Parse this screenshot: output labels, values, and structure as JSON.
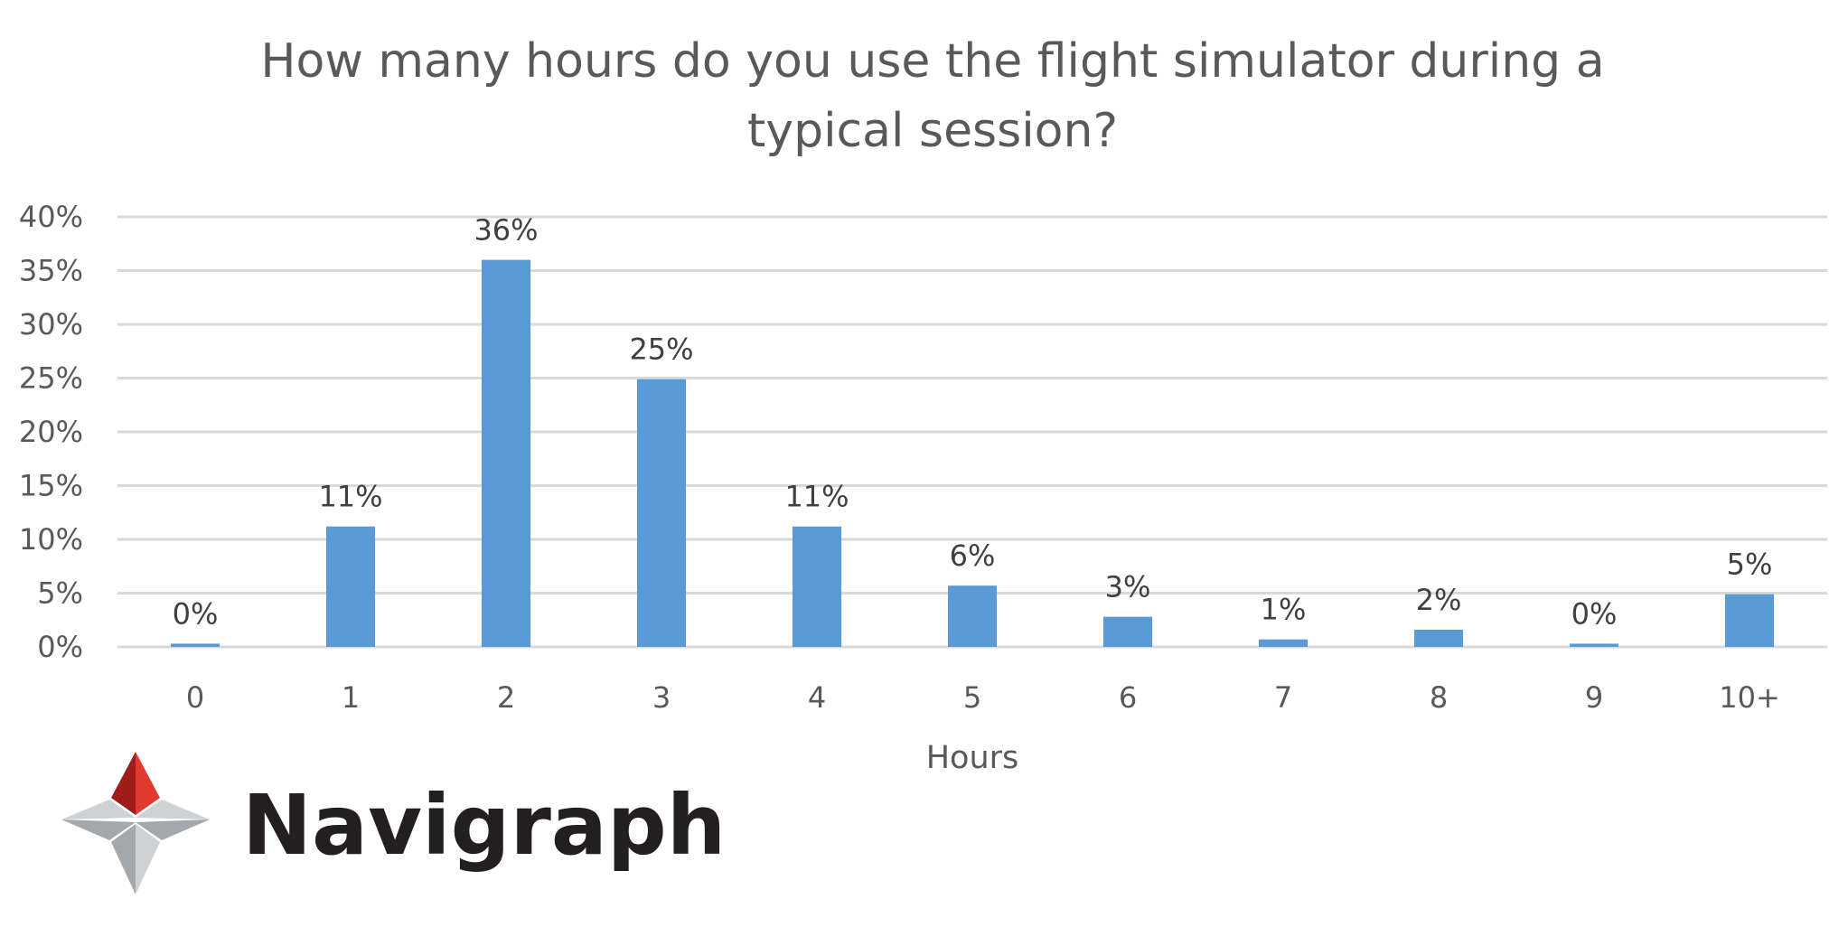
{
  "chart_data": {
    "type": "bar",
    "title": "How many hours do you use the flight simulator during a typical session?",
    "title_lines": [
      "How many hours do you use the flight simulator during a",
      "typical session?"
    ],
    "xlabel": "Hours",
    "ylabel": "",
    "categories": [
      "0",
      "1",
      "2",
      "3",
      "4",
      "5",
      "6",
      "7",
      "8",
      "9",
      "10+"
    ],
    "values": [
      0.3,
      11.2,
      36.0,
      24.9,
      11.2,
      5.7,
      2.8,
      0.7,
      1.6,
      0.3,
      4.9
    ],
    "data_labels": [
      "0%",
      "11%",
      "36%",
      "25%",
      "11%",
      "6%",
      "3%",
      "1%",
      "2%",
      "0%",
      "5%"
    ],
    "ylim": [
      0,
      40
    ],
    "yticks": [
      0,
      5,
      10,
      15,
      20,
      25,
      30,
      35,
      40
    ],
    "ytick_labels": [
      "0%",
      "5%",
      "10%",
      "15%",
      "20%",
      "25%",
      "30%",
      "35%",
      "40%"
    ],
    "grid": true,
    "legend": "none",
    "bar_color": "#5b9bd5",
    "grid_color": "#d9d9d9"
  },
  "logo": {
    "text": "Navigraph",
    "colors": {
      "red": "#e03a2f",
      "dark_red": "#9e1c1a",
      "gray": "#a3a8ad",
      "light_gray": "#cfd2d5",
      "text": "#231f20"
    }
  }
}
